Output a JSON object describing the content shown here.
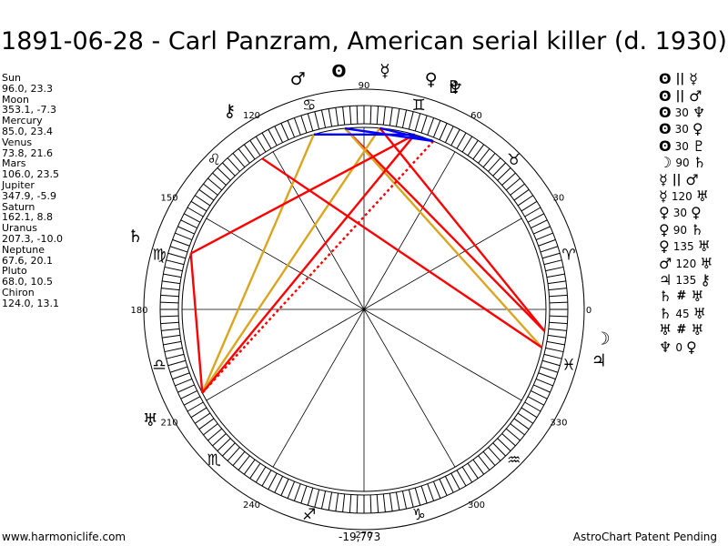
{
  "title": "1891-06-28 - Carl Panzram, American serial killer (d. 1930)",
  "planets": [
    {
      "name": "Sun",
      "coords": "96.0, 23.3",
      "lon": 96.0,
      "glyph": "ʘ"
    },
    {
      "name": "Moon",
      "coords": "353.1, -7.3",
      "lon": 353.1,
      "glyph": "☽"
    },
    {
      "name": "Mercury",
      "coords": "85.0, 23.4",
      "lon": 85.0,
      "glyph": "☿"
    },
    {
      "name": "Venus",
      "coords": "73.8, 21.6",
      "lon": 73.8,
      "glyph": "♀"
    },
    {
      "name": "Mars",
      "coords": "106.0, 23.5",
      "lon": 106.0,
      "glyph": "♂"
    },
    {
      "name": "Jupiter",
      "coords": "347.9, -5.9",
      "lon": 347.9,
      "glyph": "♃"
    },
    {
      "name": "Saturn",
      "coords": "162.1, 8.8",
      "lon": 162.1,
      "glyph": "♄"
    },
    {
      "name": "Uranus",
      "coords": "207.3, -10.0",
      "lon": 207.3,
      "glyph": "♅"
    },
    {
      "name": "Neptune",
      "coords": "67.6, 20.1",
      "lon": 67.6,
      "glyph": "♆"
    },
    {
      "name": "Pluto",
      "coords": "68.0, 10.5",
      "lon": 68.0,
      "glyph": "♇"
    },
    {
      "name": "Chiron",
      "coords": "124.0, 13.1",
      "lon": 124.0,
      "glyph": "⚷"
    }
  ],
  "aspects": [
    {
      "p1": "ʘ",
      "sym": "||",
      "deg": "",
      "p2": "☿"
    },
    {
      "p1": "ʘ",
      "sym": "||",
      "deg": "",
      "p2": "♂"
    },
    {
      "p1": "ʘ",
      "sym": "",
      "deg": "30",
      "p2": "♆"
    },
    {
      "p1": "ʘ",
      "sym": "",
      "deg": "30",
      "p2": "♀"
    },
    {
      "p1": "ʘ",
      "sym": "",
      "deg": "30",
      "p2": "♇"
    },
    {
      "p1": "☽",
      "sym": "",
      "deg": "90",
      "p2": "♄"
    },
    {
      "p1": "☿",
      "sym": "||",
      "deg": "",
      "p2": "♂"
    },
    {
      "p1": "☿",
      "sym": "",
      "deg": "120",
      "p2": "♅"
    },
    {
      "p1": "♀",
      "sym": "",
      "deg": "30",
      "p2": "♀"
    },
    {
      "p1": "♀",
      "sym": "",
      "deg": "90",
      "p2": "♄"
    },
    {
      "p1": "♀",
      "sym": "",
      "deg": "135",
      "p2": "♅"
    },
    {
      "p1": "♂",
      "sym": "",
      "deg": "120",
      "p2": "♅"
    },
    {
      "p1": "♃",
      "sym": "",
      "deg": "135",
      "p2": "⚷"
    },
    {
      "p1": "♄",
      "sym": "#",
      "deg": "",
      "p2": "♅"
    },
    {
      "p1": "♄",
      "sym": "",
      "deg": "45",
      "p2": "♅"
    },
    {
      "p1": "♅",
      "sym": "#",
      "deg": "",
      "p2": "♅"
    },
    {
      "p1": "♆",
      "sym": "",
      "deg": "0",
      "p2": "♀"
    }
  ],
  "degree_labels": [
    "0",
    "30",
    "60",
    "90",
    "120",
    "150",
    "180",
    "210",
    "240",
    "270",
    "300",
    "330"
  ],
  "zodiac_signs": [
    "♈",
    "♉",
    "♊",
    "♋",
    "♌",
    "♍",
    "♎",
    "♏",
    "♐",
    "♑",
    "♒",
    "♓"
  ],
  "aspect_lines": [
    {
      "a": 96.0,
      "b": 353.1,
      "color": "#ff0000",
      "dashed": false
    },
    {
      "a": 96.0,
      "b": 347.9,
      "color": "#daa520",
      "dashed": false
    },
    {
      "a": 85.0,
      "b": 207.3,
      "color": "#daa520",
      "dashed": false
    },
    {
      "a": 106.0,
      "b": 207.3,
      "color": "#daa520",
      "dashed": false
    },
    {
      "a": 73.8,
      "b": 162.1,
      "color": "#ff0000",
      "dashed": false
    },
    {
      "a": 73.8,
      "b": 207.3,
      "color": "#ff0000",
      "dashed": false
    },
    {
      "a": 124.0,
      "b": 347.9,
      "color": "#ff0000",
      "dashed": false
    },
    {
      "a": 353.1,
      "b": 85.0,
      "color": "#ff0000",
      "dashed": false
    },
    {
      "a": 162.1,
      "b": 207.3,
      "color": "#ff0000",
      "dashed": false
    },
    {
      "a": 67.6,
      "b": 207.3,
      "color": "#ff0000",
      "dashed": true
    },
    {
      "a": 106.0,
      "b": 73.8,
      "color": "#0000ff",
      "dashed": false
    },
    {
      "a": 96.0,
      "b": 67.6,
      "color": "#0000ff",
      "dashed": false
    },
    {
      "a": 85.0,
      "b": 68.0,
      "color": "#0000ff",
      "dashed": false
    }
  ],
  "footer": {
    "website": "www.harmoniclife.com",
    "count": "-19,773",
    "notice": "AstroChart Patent Pending"
  },
  "colors": {
    "hard": "#ff0000",
    "soft": "#daa520",
    "minor": "#0000ff"
  }
}
